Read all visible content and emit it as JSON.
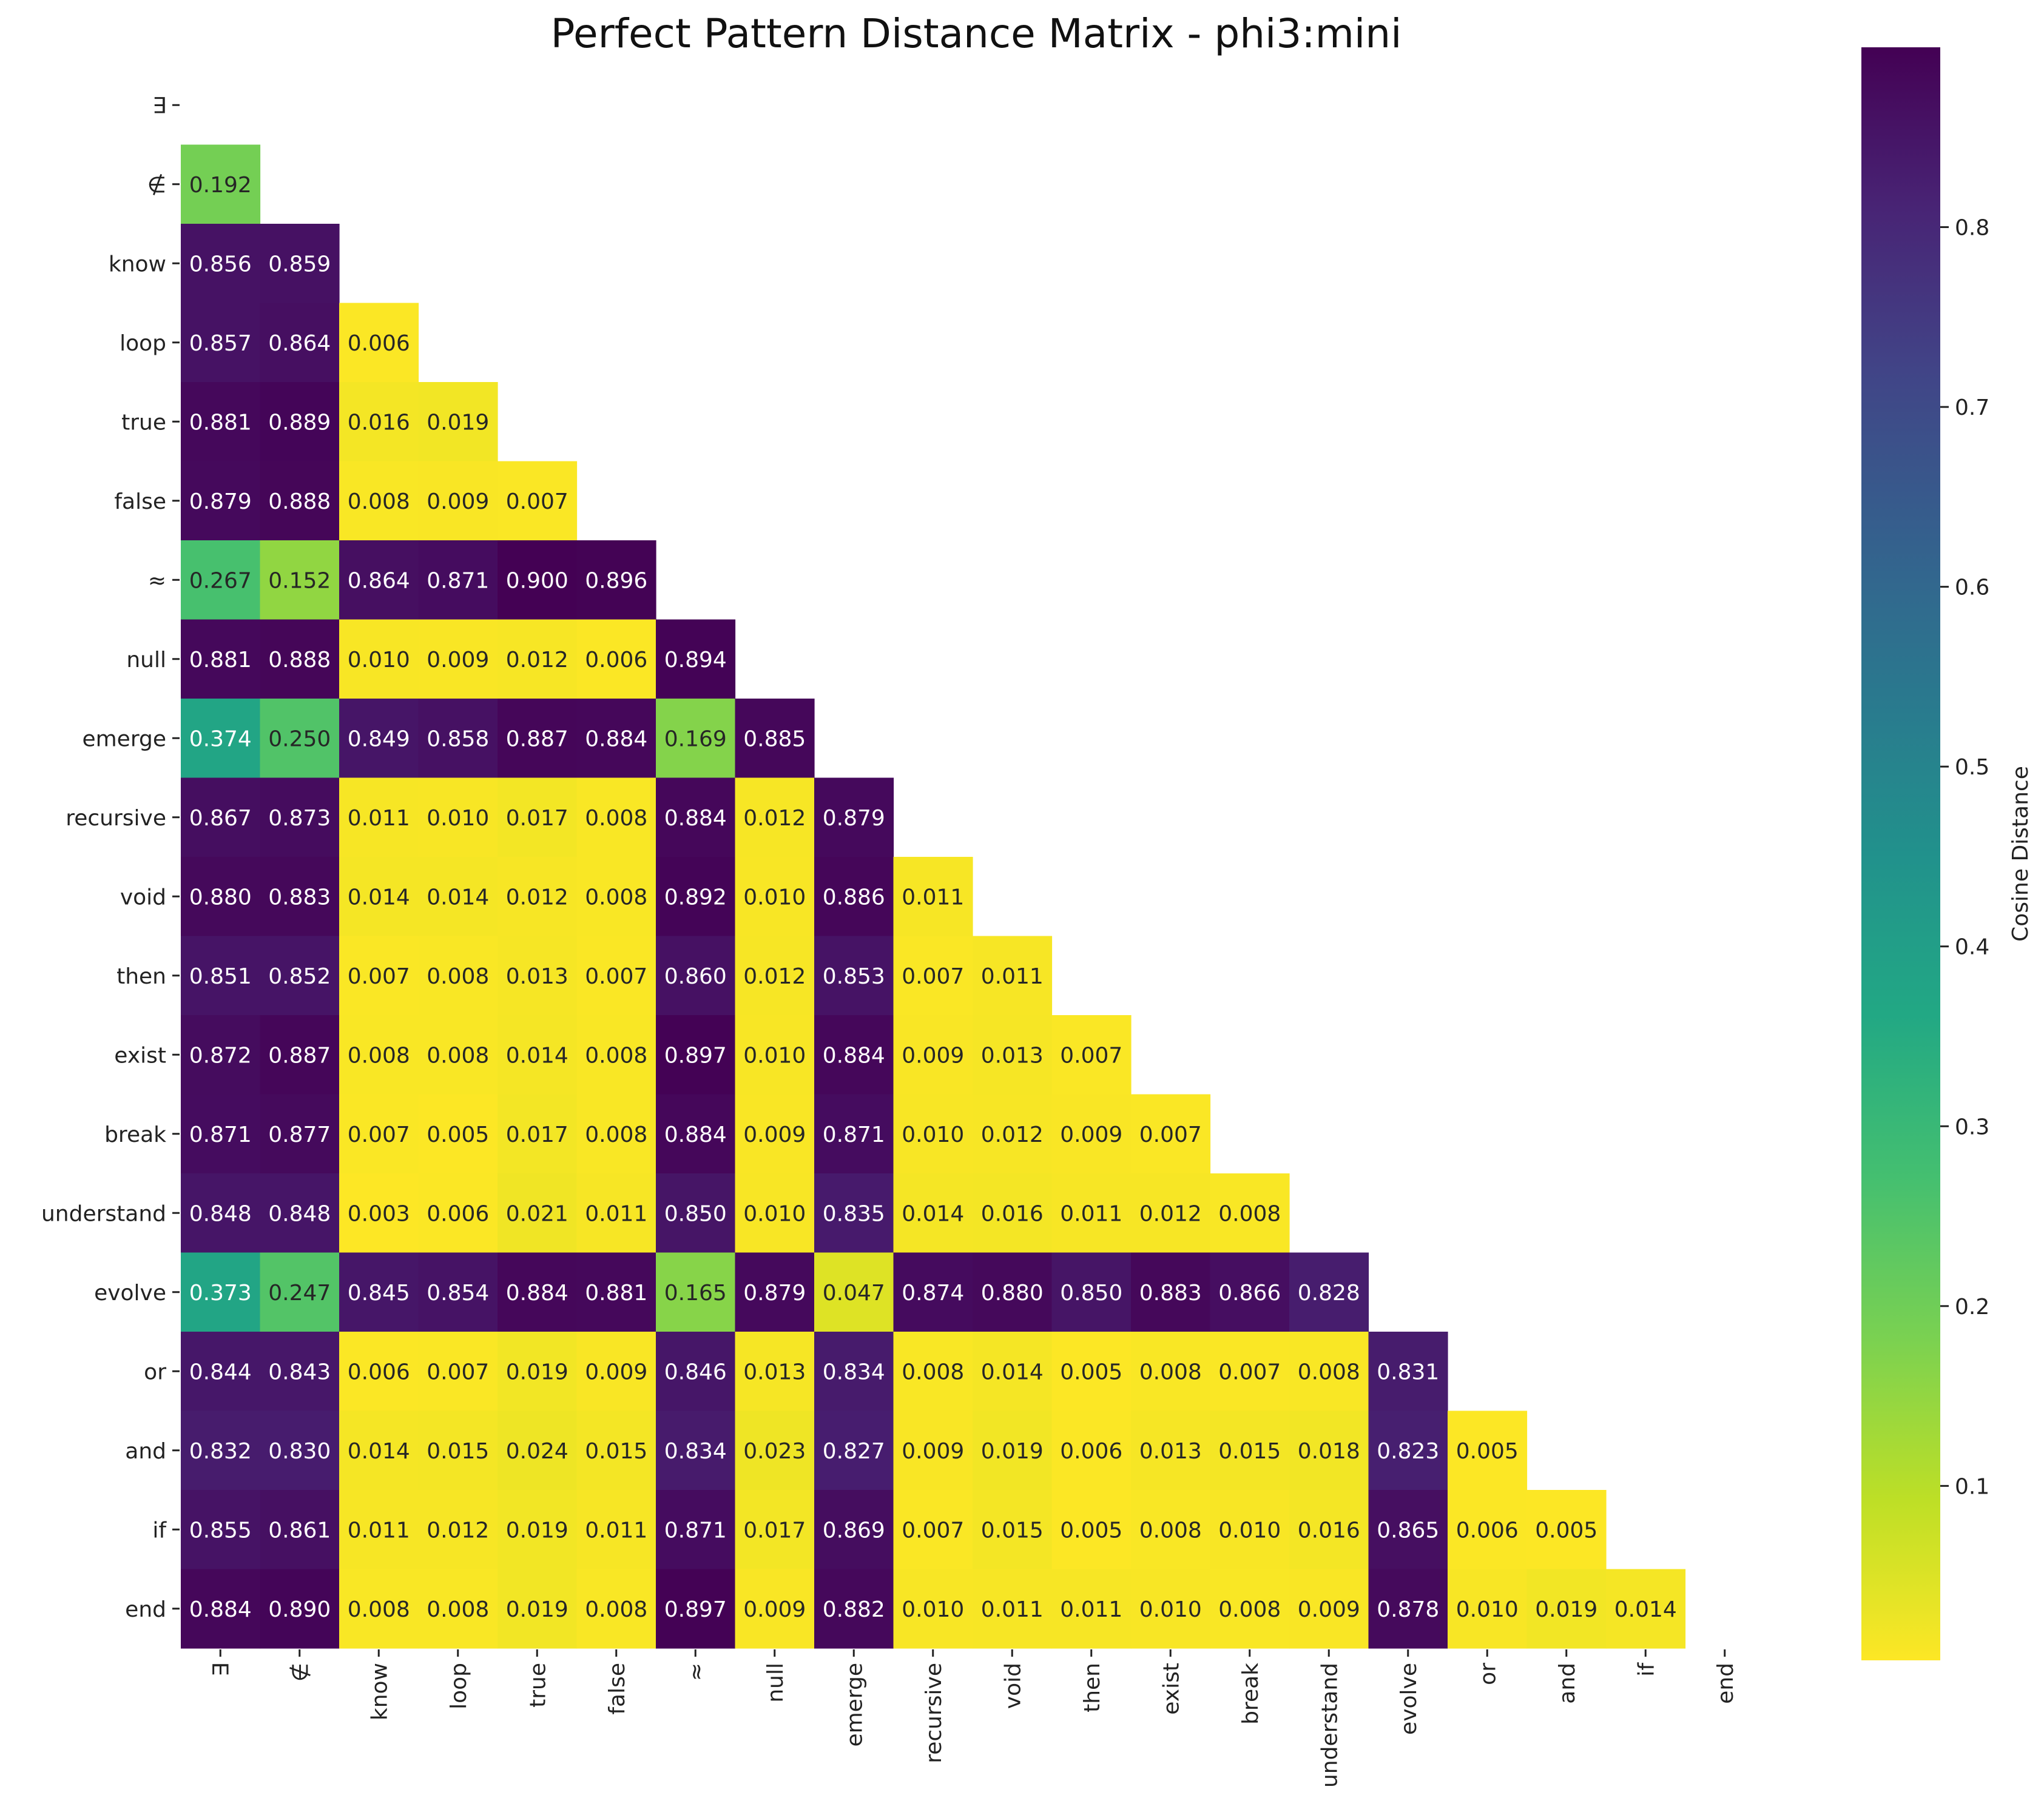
{
  "chart_data": {
    "type": "heatmap",
    "title": "Perfect Pattern Distance Matrix - phi3:mini",
    "labels": [
      "∃",
      "∉",
      "know",
      "loop",
      "true",
      "false",
      "≈",
      "null",
      "emerge",
      "recursive",
      "void",
      "then",
      "exist",
      "break",
      "understand",
      "evolve",
      "or",
      "and",
      "if",
      "end"
    ],
    "mask": "upper-triangle-and-diagonal",
    "matrix": [
      [],
      [
        0.192
      ],
      [
        0.856,
        0.859
      ],
      [
        0.857,
        0.864,
        0.006
      ],
      [
        0.881,
        0.889,
        0.016,
        0.019
      ],
      [
        0.879,
        0.888,
        0.008,
        0.009,
        0.007
      ],
      [
        0.267,
        0.152,
        0.864,
        0.871,
        0.9,
        0.896
      ],
      [
        0.881,
        0.888,
        0.01,
        0.009,
        0.012,
        0.006,
        0.894
      ],
      [
        0.374,
        0.25,
        0.849,
        0.858,
        0.887,
        0.884,
        0.169,
        0.885
      ],
      [
        0.867,
        0.873,
        0.011,
        0.01,
        0.017,
        0.008,
        0.884,
        0.012,
        0.879
      ],
      [
        0.88,
        0.883,
        0.014,
        0.014,
        0.012,
        0.008,
        0.892,
        0.01,
        0.886,
        0.011
      ],
      [
        0.851,
        0.852,
        0.007,
        0.008,
        0.013,
        0.007,
        0.86,
        0.012,
        0.853,
        0.007,
        0.011
      ],
      [
        0.872,
        0.887,
        0.008,
        0.008,
        0.014,
        0.008,
        0.897,
        0.01,
        0.884,
        0.009,
        0.013,
        0.007
      ],
      [
        0.871,
        0.877,
        0.007,
        0.005,
        0.017,
        0.008,
        0.884,
        0.009,
        0.871,
        0.01,
        0.012,
        0.009,
        0.007
      ],
      [
        0.848,
        0.848,
        0.003,
        0.006,
        0.021,
        0.011,
        0.85,
        0.01,
        0.835,
        0.014,
        0.016,
        0.011,
        0.012,
        0.008
      ],
      [
        0.373,
        0.247,
        0.845,
        0.854,
        0.884,
        0.881,
        0.165,
        0.879,
        0.047,
        0.874,
        0.88,
        0.85,
        0.883,
        0.866,
        0.828
      ],
      [
        0.844,
        0.843,
        0.006,
        0.007,
        0.019,
        0.009,
        0.846,
        0.013,
        0.834,
        0.008,
        0.014,
        0.005,
        0.008,
        0.007,
        0.008,
        0.831
      ],
      [
        0.832,
        0.83,
        0.014,
        0.015,
        0.024,
        0.015,
        0.834,
        0.023,
        0.827,
        0.009,
        0.019,
        0.006,
        0.013,
        0.015,
        0.018,
        0.823,
        0.005
      ],
      [
        0.855,
        0.861,
        0.011,
        0.012,
        0.019,
        0.011,
        0.871,
        0.017,
        0.869,
        0.007,
        0.015,
        0.005,
        0.008,
        0.01,
        0.016,
        0.865,
        0.006,
        0.005
      ],
      [
        0.884,
        0.89,
        0.008,
        0.008,
        0.019,
        0.008,
        0.897,
        0.009,
        0.882,
        0.01,
        0.011,
        0.011,
        0.01,
        0.008,
        0.009,
        0.878,
        0.01,
        0.019,
        0.014
      ]
    ],
    "value_format": "3 decimals",
    "colormap": "viridis_r",
    "colorbar": {
      "label": "Cosine Distance",
      "range": [
        0.003,
        0.9
      ],
      "ticks": [
        "0.1",
        "0.2",
        "0.3",
        "0.4",
        "0.5",
        "0.6",
        "0.7",
        "0.8"
      ],
      "tick_values": [
        0.1,
        0.2,
        0.3,
        0.4,
        0.5,
        0.6,
        0.7,
        0.8
      ]
    }
  }
}
